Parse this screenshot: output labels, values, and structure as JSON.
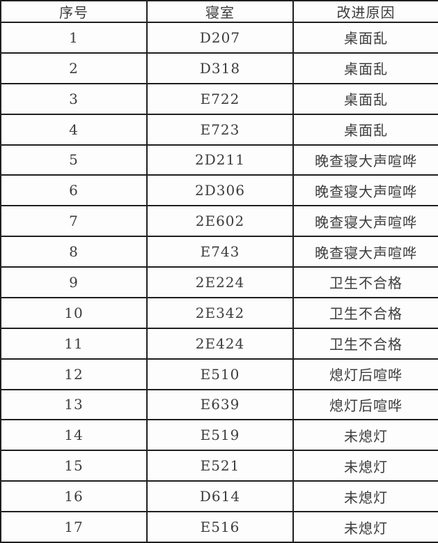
{
  "colors": {
    "background": "#fdfdfd",
    "border": "#1f1f1f",
    "text": "#3c3c3c"
  },
  "table": {
    "columns": [
      "序号",
      "寝室",
      "改进原因"
    ],
    "rows": [
      [
        "1",
        "D207",
        "桌面乱"
      ],
      [
        "2",
        "D318",
        "桌面乱"
      ],
      [
        "3",
        "E722",
        "桌面乱"
      ],
      [
        "4",
        "E723",
        "桌面乱"
      ],
      [
        "5",
        "2D211",
        "晚查寝大声喧哗"
      ],
      [
        "6",
        "2D306",
        "晚查寝大声喧哗"
      ],
      [
        "7",
        "2E602",
        "晚查寝大声喧哗"
      ],
      [
        "8",
        "E743",
        "晚查寝大声喧哗"
      ],
      [
        "9",
        "2E224",
        "卫生不合格"
      ],
      [
        "10",
        "2E342",
        "卫生不合格"
      ],
      [
        "11",
        "2E424",
        "卫生不合格"
      ],
      [
        "12",
        "E510",
        "熄灯后喧哗"
      ],
      [
        "13",
        "E639",
        "熄灯后喧哗"
      ],
      [
        "14",
        "E519",
        "未熄灯"
      ],
      [
        "15",
        "E521",
        "未熄灯"
      ],
      [
        "16",
        "D614",
        "未熄灯"
      ],
      [
        "17",
        "E516",
        "未熄灯"
      ]
    ]
  }
}
